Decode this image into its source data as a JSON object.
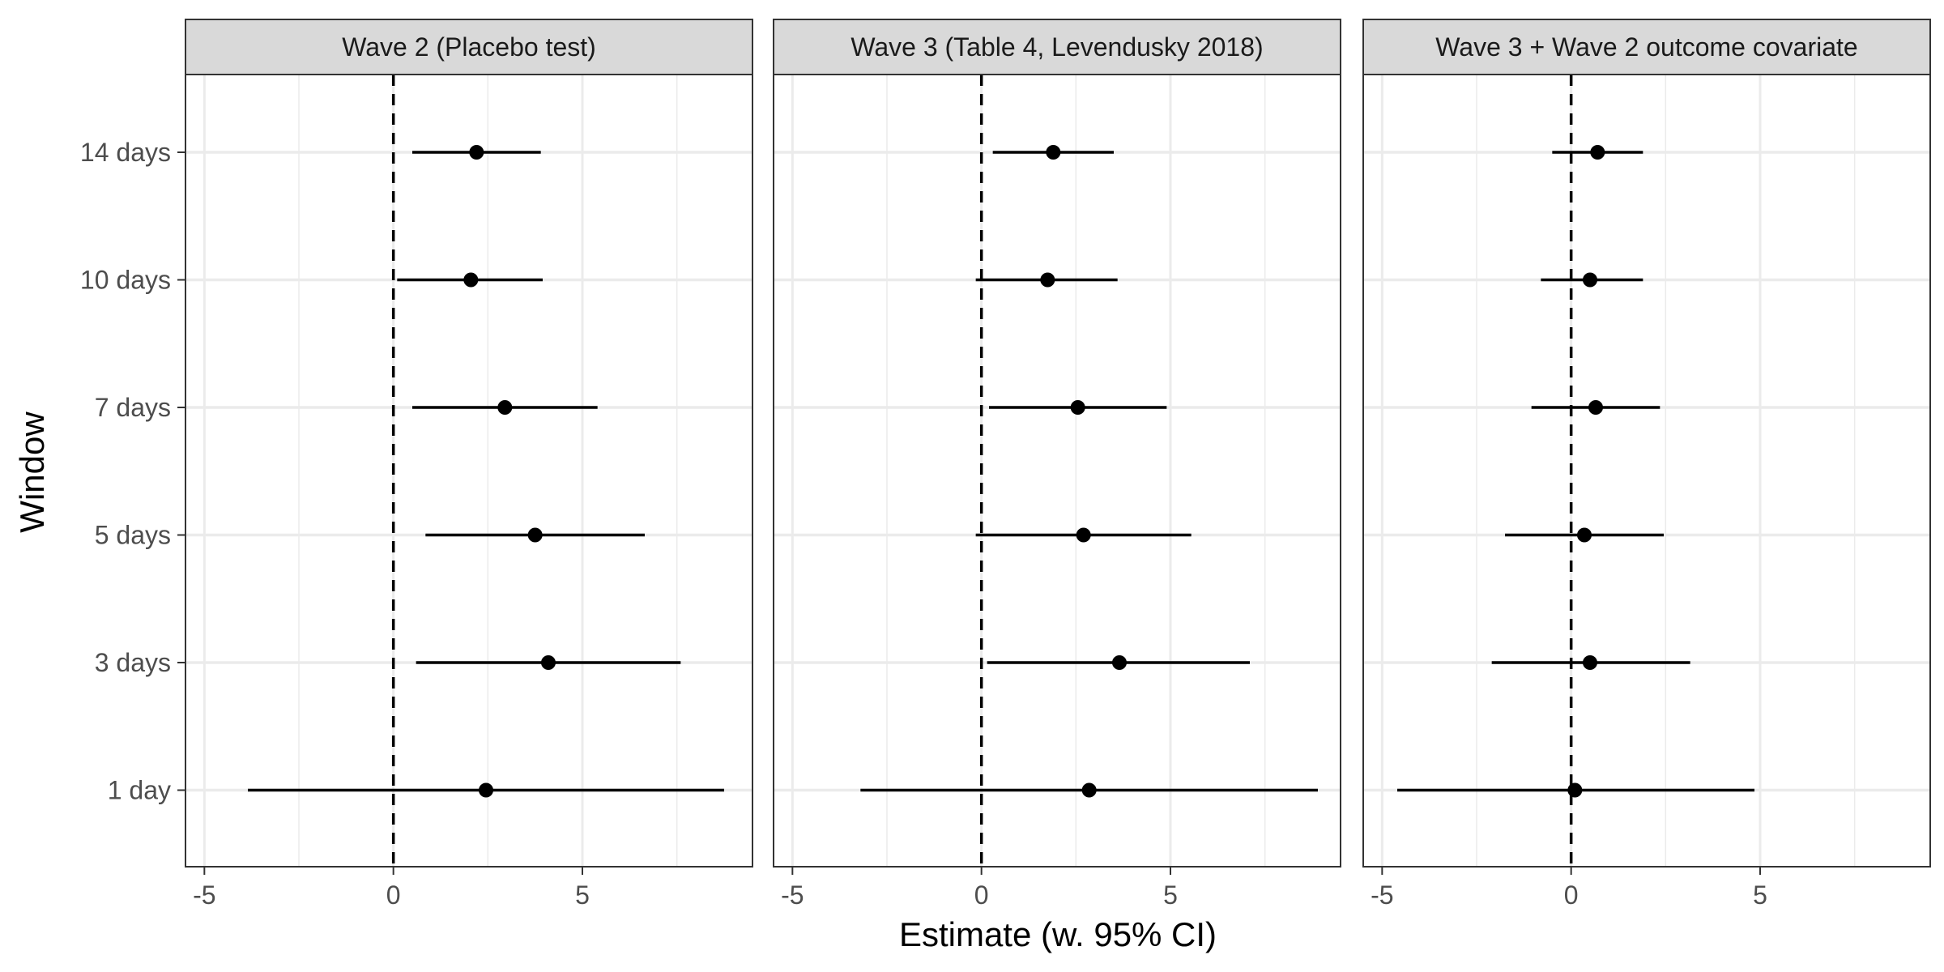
{
  "chart_data": {
    "type": "forest",
    "xlabel": "Estimate (w. 95% CI)",
    "ylabel": "Window",
    "xlim": [
      -5.5,
      9.5
    ],
    "x_ticks": [
      -5,
      0,
      5
    ],
    "x_tick_labels": [
      "-5",
      "0",
      "5"
    ],
    "categories": [
      "1 day",
      "3 days",
      "5 days",
      "7 days",
      "10 days",
      "14 days"
    ],
    "reference_line": 0,
    "grid": true,
    "colors": {
      "strip_bg": "#d9d9d9",
      "panel_border": "#333333",
      "grid": "#ebebeb",
      "point": "#000000"
    },
    "panels": [
      {
        "title": "Wave 2 (Placebo test)",
        "estimates": [
          2.45,
          4.1,
          3.75,
          2.95,
          2.05,
          2.2
        ],
        "lower": [
          -3.85,
          0.6,
          0.85,
          0.5,
          0.1,
          0.5
        ],
        "upper": [
          8.75,
          7.6,
          6.65,
          5.4,
          3.95,
          3.9
        ]
      },
      {
        "title": "Wave 3 (Table 4, Levendusky 2018)",
        "estimates": [
          2.85,
          3.65,
          2.7,
          2.55,
          1.75,
          1.9
        ],
        "lower": [
          -3.2,
          0.15,
          -0.15,
          0.2,
          -0.15,
          0.3
        ],
        "upper": [
          8.9,
          7.1,
          5.55,
          4.9,
          3.6,
          3.5
        ]
      },
      {
        "title": "Wave 3 + Wave 2 outcome covariate",
        "estimates": [
          0.1,
          0.5,
          0.35,
          0.65,
          0.5,
          0.7
        ],
        "lower": [
          -4.6,
          -2.1,
          -1.75,
          -1.05,
          -0.8,
          -0.5
        ],
        "upper": [
          4.85,
          3.15,
          2.45,
          2.35,
          1.9,
          1.9
        ]
      }
    ]
  }
}
